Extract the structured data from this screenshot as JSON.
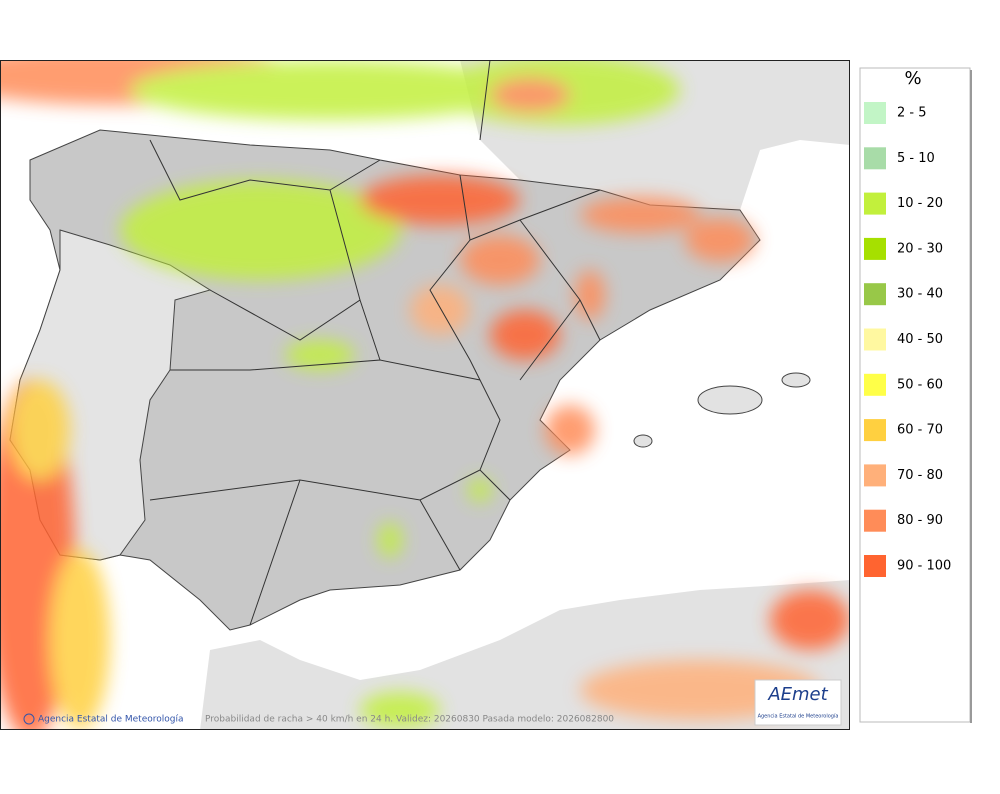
{
  "legend": {
    "title": "%",
    "items": [
      {
        "label": "2 - 5",
        "color": "#c2f5c6"
      },
      {
        "label": "5 - 10",
        "color": "#a8dca8"
      },
      {
        "label": "10 - 20",
        "color": "#c2f03c"
      },
      {
        "label": "20 - 30",
        "color": "#a6e000"
      },
      {
        "label": "30 - 40",
        "color": "#98c848"
      },
      {
        "label": "40 - 50",
        "color": "#fff8a0"
      },
      {
        "label": "50 - 60",
        "color": "#ffff48"
      },
      {
        "label": "60 - 70",
        "color": "#ffd040"
      },
      {
        "label": "70 - 80",
        "color": "#ffb07a"
      },
      {
        "label": "80 - 90",
        "color": "#ff8c58"
      },
      {
        "label": "90 - 100",
        "color": "#ff6430"
      }
    ]
  },
  "footer": {
    "credit": "Agencia Estatal de Meteorología",
    "caption": "Probabilidad de racha > 40 km/h en 24 h. Validez: 20260830 Pasada modelo: 2026082800"
  },
  "logo": {
    "name": "AEmet",
    "subtitle": "Agencia Estatal de Meteorología"
  }
}
